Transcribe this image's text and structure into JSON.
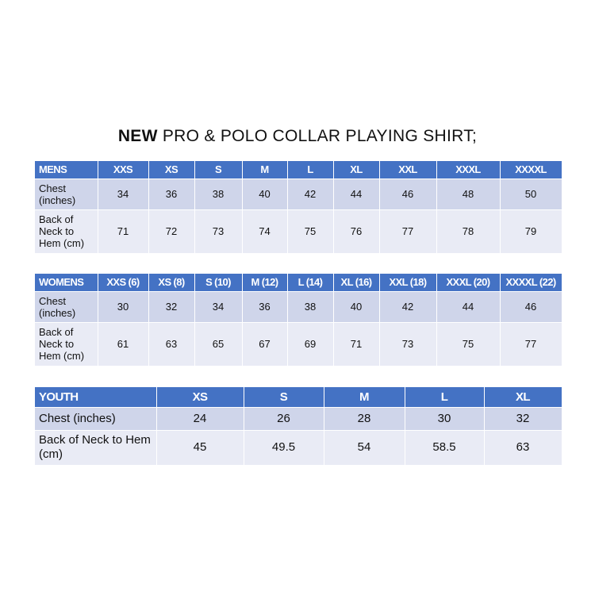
{
  "title": {
    "bold": "NEW",
    "rest": " PRO & POLO COLLAR PLAYING SHIRT;"
  },
  "colors": {
    "header": "#4472C4",
    "row_dark": "#CFD5EA",
    "row_light": "#E9EBF5"
  },
  "tables": [
    {
      "id": "mens",
      "header": [
        "MENS",
        "XXS",
        "XS",
        "S",
        "M",
        "L",
        "XL",
        "XXL",
        "XXXL",
        "XXXXL"
      ],
      "rows": [
        {
          "label": "Chest (inches)",
          "values": [
            "34",
            "36",
            "38",
            "40",
            "42",
            "44",
            "46",
            "48",
            "50"
          ]
        },
        {
          "label": "Back of Neck to Hem (cm)",
          "values": [
            "71",
            "72",
            "73",
            "74",
            "75",
            "76",
            "77",
            "78",
            "79"
          ]
        }
      ]
    },
    {
      "id": "womens",
      "header": [
        "WOMENS",
        "XXS (6)",
        "XS (8)",
        "S (10)",
        "M (12)",
        "L (14)",
        "XL (16)",
        "XXL (18)",
        "XXXL (20)",
        "XXXXL (22)"
      ],
      "rows": [
        {
          "label": "Chest (inches)",
          "values": [
            "30",
            "32",
            "34",
            "36",
            "38",
            "40",
            "42",
            "44",
            "46"
          ]
        },
        {
          "label": "Back of Neck to Hem (cm)",
          "values": [
            "61",
            "63",
            "65",
            "67",
            "69",
            "71",
            "73",
            "75",
            "77"
          ]
        }
      ]
    },
    {
      "id": "youth",
      "header": [
        "YOUTH",
        "XS",
        "S",
        "M",
        "L",
        "XL"
      ],
      "rows": [
        {
          "label": "Chest (inches)",
          "values": [
            "24",
            "26",
            "28",
            "30",
            "32"
          ]
        },
        {
          "label": "Back of Neck to Hem (cm)",
          "values": [
            "45",
            "49.5",
            "54",
            "58.5",
            "63"
          ]
        }
      ]
    }
  ]
}
